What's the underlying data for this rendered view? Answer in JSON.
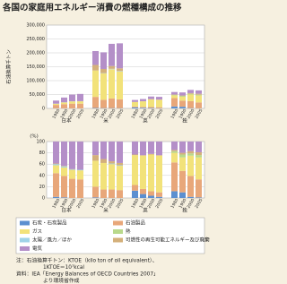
{
  "title": "各国の家庭用エネルギー消費の燃種構成の推移",
  "chart_data": [
    {
      "type": "stacked_bar",
      "y_label": "石油換算千トン",
      "categories": [
        "1980",
        "1990",
        "2000",
        "2005",
        "1980",
        "1990",
        "2000",
        "2005",
        "1980",
        "1990",
        "2000",
        "2005",
        "1980",
        "1990",
        "2000",
        "2005"
      ],
      "groups": [
        "日本",
        "米",
        "英",
        "独"
      ],
      "ylim": [
        0,
        300000
      ],
      "yticks": [
        0,
        {
          "value": 50000,
          "label": "50,000"
        },
        {
          "value": 100000,
          "label": "100,000"
        },
        {
          "value": 150000,
          "label": "150,000"
        },
        {
          "value": 200000,
          "label": "200,000"
        },
        {
          "value": 250000,
          "label": "250,000"
        },
        {
          "value": 300000,
          "label": "300,000"
        }
      ],
      "series": [
        {
          "name": "石炭・石炭製品",
          "color": "#5b8fd0",
          "values": [
            500,
            300,
            200,
            100,
            1500,
            1000,
            1000,
            800,
            4000,
            2500,
            1500,
            800,
            7000,
            6000,
            1000,
            500
          ]
        },
        {
          "name": "石油製品",
          "color": "#e8a77a",
          "values": [
            12000,
            15000,
            17000,
            17000,
            40000,
            30000,
            35000,
            32000,
            3000,
            3000,
            3500,
            3500,
            30000,
            22000,
            25000,
            21000
          ]
        },
        {
          "name": "ガス",
          "color": "#f2e27a",
          "values": [
            4000,
            6000,
            8000,
            8500,
            95000,
            95000,
            105000,
            100000,
            16000,
            20000,
            28000,
            27000,
            10000,
            14000,
            24000,
            25000
          ]
        },
        {
          "name": "熱",
          "color": "#b9d98b",
          "values": [
            0,
            0,
            0,
            0,
            0,
            0,
            0,
            0,
            0,
            0,
            0,
            0,
            2000,
            3000,
            2500,
            2500
          ]
        },
        {
          "name": "太陽／風力／ほか",
          "color": "#9fd3e8",
          "values": [
            500,
            600,
            400,
            300,
            0,
            1000,
            1500,
            1500,
            0,
            0,
            0,
            0,
            0,
            0,
            100,
            300
          ]
        },
        {
          "name": "可燃性の再生可能エネルギー及び廃棄物",
          "color": "#d4b07a",
          "values": [
            200,
            200,
            200,
            200,
            20000,
            15000,
            10000,
            10000,
            300,
            300,
            300,
            300,
            1000,
            1500,
            2500,
            3500
          ]
        },
        {
          "name": "電気",
          "color": "#b48fc8",
          "values": [
            11000,
            17000,
            24000,
            26000,
            50000,
            60000,
            80000,
            90000,
            7000,
            8000,
            9500,
            10000,
            9000,
            11000,
            11500,
            12000
          ]
        }
      ]
    },
    {
      "type": "stacked_bar",
      "y_label": "(%)",
      "categories": [
        "1980",
        "1990",
        "2000",
        "2005",
        "1980",
        "1990",
        "2000",
        "2005",
        "1980",
        "1990",
        "2000",
        "2005",
        "1980",
        "1990",
        "2000",
        "2005"
      ],
      "groups": [
        "日本",
        "米",
        "英",
        "独"
      ],
      "ylim": [
        0,
        100
      ],
      "yticks": [
        0,
        20,
        40,
        60,
        80,
        100
      ],
      "series": [
        {
          "color": "#5b8fd0",
          "values": [
            2,
            1,
            0,
            0,
            1,
            0,
            0,
            0,
            13,
            7,
            4,
            2,
            12,
            10,
            2,
            1
          ]
        },
        {
          "color": "#e8a77a",
          "values": [
            42,
            38,
            34,
            33,
            19,
            15,
            15,
            14,
            10,
            9,
            8,
            8,
            51,
            38,
            37,
            32
          ]
        },
        {
          "color": "#f2e27a",
          "values": [
            14,
            15,
            16,
            16,
            46,
            47,
            45,
            43,
            53,
            59,
            65,
            65,
            17,
            24,
            36,
            39
          ]
        },
        {
          "color": "#b9d98b",
          "values": [
            0,
            0,
            0,
            0,
            0,
            0,
            0,
            0,
            0,
            0,
            0,
            0,
            3,
            5,
            4,
            4
          ]
        },
        {
          "color": "#9fd3e8",
          "values": [
            2,
            2,
            1,
            1,
            0,
            0,
            1,
            1,
            0,
            0,
            0,
            0,
            0,
            0,
            0,
            0
          ]
        },
        {
          "color": "#d4b07a",
          "values": [
            1,
            1,
            0,
            0,
            10,
            7,
            4,
            4,
            1,
            1,
            1,
            1,
            2,
            3,
            4,
            5
          ]
        },
        {
          "color": "#b48fc8",
          "values": [
            39,
            43,
            49,
            50,
            24,
            31,
            35,
            38,
            23,
            24,
            22,
            24,
            15,
            20,
            17,
            19
          ]
        }
      ]
    }
  ],
  "notes": [
    "注：石油換算千トン：KTOE（kilo ton of oil equivalent）、",
    "1KTOE＝10⁷kcal",
    "資料：IEA「Energy Balances of OECD Countries 2007」",
    "より環境省作成"
  ]
}
